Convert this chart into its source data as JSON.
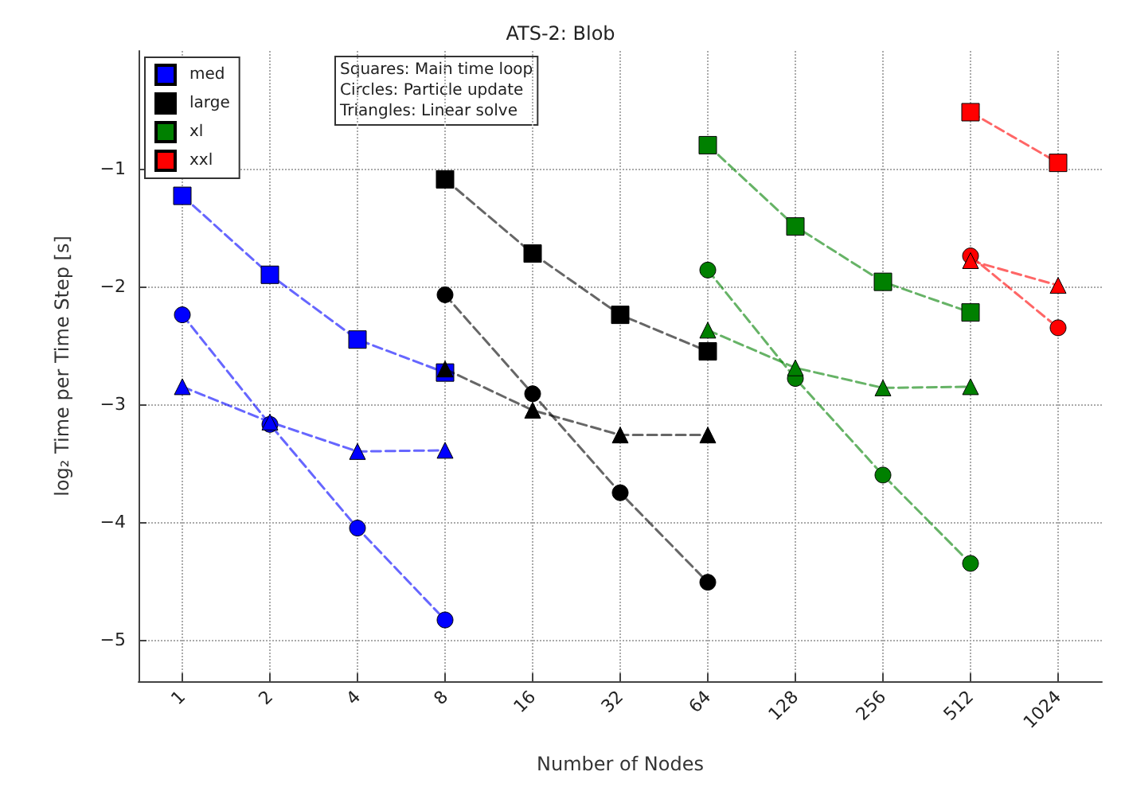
{
  "chart_data": {
    "type": "line",
    "title": "ATS-2: Blob",
    "xlabel": "Number of Nodes",
    "ylabel": "log₂ Time per Time Step [s]",
    "categories": [
      "1",
      "2",
      "4",
      "8",
      "16",
      "32",
      "64",
      "128",
      "256",
      "512",
      "1024"
    ],
    "series": [
      {
        "name": "med",
        "color": "#0000ff",
        "marker": "square",
        "values": [
          -1.23,
          -1.9,
          -2.45,
          -2.73,
          null,
          null,
          null,
          null,
          null,
          null,
          null
        ]
      },
      {
        "color": "#0000ff",
        "marker": "circle",
        "values": [
          -2.24,
          -3.17,
          -4.05,
          -4.83,
          null,
          null,
          null,
          null,
          null,
          null,
          null
        ]
      },
      {
        "color": "#0000ff",
        "marker": "triangle",
        "values": [
          -2.85,
          -3.15,
          -3.4,
          -3.39,
          null,
          null,
          null,
          null,
          null,
          null,
          null
        ]
      },
      {
        "name": "large",
        "color": "#000000",
        "marker": "square",
        "values": [
          null,
          null,
          null,
          -1.09,
          -1.72,
          -2.24,
          -2.55,
          null,
          null,
          null,
          null
        ]
      },
      {
        "color": "#000000",
        "marker": "circle",
        "values": [
          null,
          null,
          null,
          -2.07,
          -2.91,
          -3.75,
          -4.51,
          null,
          null,
          null,
          null
        ]
      },
      {
        "color": "#000000",
        "marker": "triangle",
        "values": [
          null,
          null,
          null,
          -2.7,
          -3.05,
          -3.26,
          -3.26,
          null,
          null,
          null,
          null
        ]
      },
      {
        "name": "xl",
        "color": "#008000",
        "marker": "square",
        "values": [
          null,
          null,
          null,
          null,
          null,
          null,
          -0.8,
          -1.49,
          -1.96,
          -2.22,
          null
        ]
      },
      {
        "color": "#008000",
        "marker": "circle",
        "values": [
          null,
          null,
          null,
          null,
          null,
          null,
          -1.86,
          -2.78,
          -3.6,
          -4.35,
          null
        ]
      },
      {
        "color": "#008000",
        "marker": "triangle",
        "values": [
          null,
          null,
          null,
          null,
          null,
          null,
          -2.37,
          -2.69,
          -2.86,
          -2.85,
          null
        ]
      },
      {
        "name": "xxl",
        "color": "#ff0000",
        "marker": "square",
        "values": [
          null,
          null,
          null,
          null,
          null,
          null,
          null,
          null,
          null,
          -0.52,
          -0.95
        ]
      },
      {
        "color": "#ff0000",
        "marker": "circle",
        "values": [
          null,
          null,
          null,
          null,
          null,
          null,
          null,
          null,
          null,
          -1.74,
          -2.35
        ]
      },
      {
        "color": "#ff0000",
        "marker": "triangle",
        "values": [
          null,
          null,
          null,
          null,
          null,
          null,
          null,
          null,
          null,
          -1.78,
          -1.99
        ]
      }
    ],
    "ylim": [
      -5.35,
      0
    ],
    "yticks": [
      -5,
      -4,
      -3,
      -2,
      -1
    ],
    "annotations": [
      "Squares: Main time loop",
      "Circles: Particle update",
      "Triangles: Linear solve"
    ],
    "grid": true,
    "legend": "top left",
    "line_style": "dashed"
  }
}
